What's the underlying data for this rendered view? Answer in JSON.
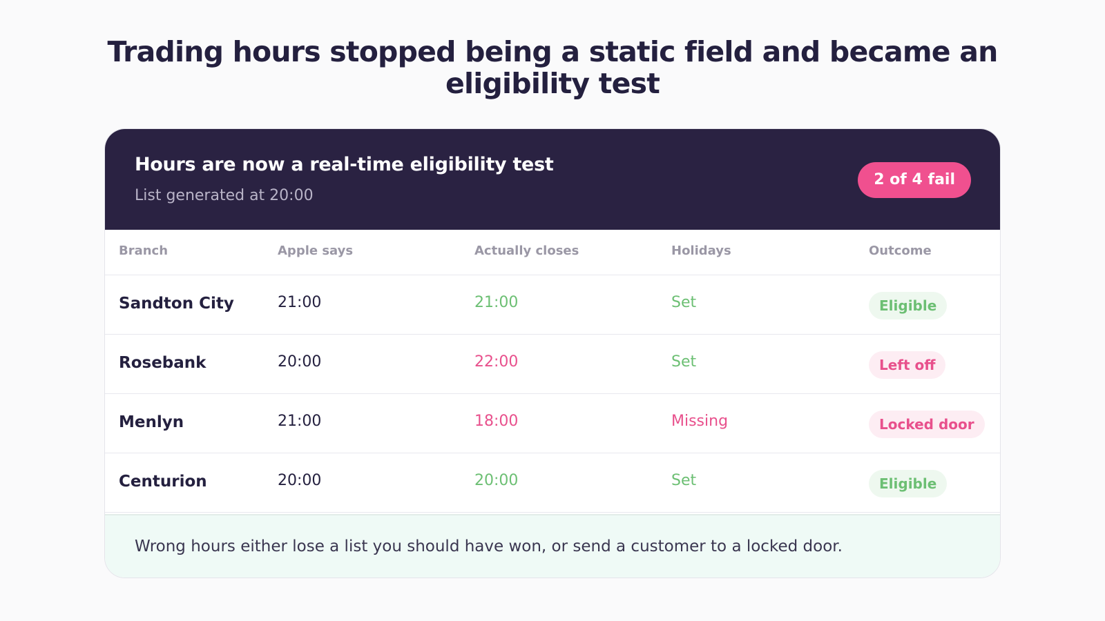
{
  "page": {
    "title": "Trading hours stopped being a static field and became an eligibility test"
  },
  "card": {
    "title": "Hours are now a real-time eligibility test",
    "subtitle": "List generated at 20:00",
    "badge": "2 of 4 fail",
    "colors": {
      "header_bg": "#2a2242",
      "badge_bg": "#f0508f",
      "ok": "#6cbf73",
      "bad": "#e8508c"
    }
  },
  "table": {
    "columns": [
      "Branch",
      "Apple says",
      "Actually closes",
      "Holidays",
      "Outcome"
    ],
    "rows": [
      {
        "branch": "Sandton City",
        "apple_says": "21:00",
        "actually_closes": "21:00",
        "holidays": "Set",
        "outcome": "Eligible"
      },
      {
        "branch": "Rosebank",
        "apple_says": "20:00",
        "actually_closes": "22:00",
        "holidays": "Set",
        "outcome": "Left off"
      },
      {
        "branch": "Menlyn",
        "apple_says": "21:00",
        "actually_closes": "18:00",
        "holidays": "Missing",
        "outcome": "Locked door"
      },
      {
        "branch": "Centurion",
        "apple_says": "20:00",
        "actually_closes": "20:00",
        "holidays": "Set",
        "outcome": "Eligible"
      }
    ]
  },
  "footer": {
    "text": "Wrong hours either lose a list you should have won, or send a customer to a locked door."
  }
}
